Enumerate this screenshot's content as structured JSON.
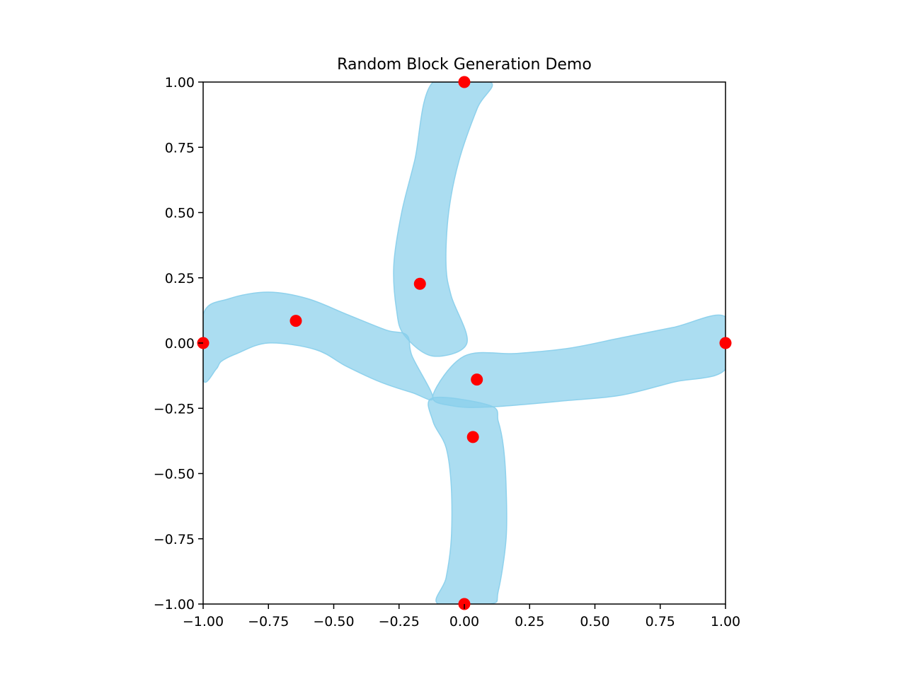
{
  "chart_data": {
    "type": "scatter",
    "title": "Random Block Generation Demo",
    "xlabel": "",
    "ylabel": "",
    "xlim": [
      -1.0,
      1.0
    ],
    "ylim": [
      -1.0,
      1.0
    ],
    "grid": false,
    "xticks": [
      -1.0,
      -0.75,
      -0.5,
      -0.25,
      0.0,
      0.25,
      0.5,
      0.75,
      1.0
    ],
    "yticks": [
      -1.0,
      -0.75,
      -0.5,
      -0.25,
      0.0,
      0.25,
      0.5,
      0.75,
      1.0
    ],
    "xtick_labels": [
      "−1.00",
      "−0.75",
      "−0.50",
      "−0.25",
      "0.00",
      "0.25",
      "0.50",
      "0.75",
      "1.00"
    ],
    "ytick_labels": [
      "−1.00",
      "−0.75",
      "−0.50",
      "−0.25",
      "0.00",
      "0.25",
      "0.50",
      "0.75",
      "1.00"
    ],
    "points": [
      {
        "x": -1.0,
        "y": 0.0
      },
      {
        "x": -0.645,
        "y": 0.085
      },
      {
        "x": -0.17,
        "y": 0.227
      },
      {
        "x": 0.0,
        "y": 1.0
      },
      {
        "x": 0.048,
        "y": -0.14
      },
      {
        "x": 0.033,
        "y": -0.36
      },
      {
        "x": 0.0,
        "y": -1.0
      },
      {
        "x": 1.0,
        "y": 0.0
      }
    ],
    "point_color": "#ff0000",
    "blocks": [
      {
        "name": "left-arm",
        "outline": [
          [
            -1.0,
            0.11
          ],
          [
            -0.9,
            0.17
          ],
          [
            -0.75,
            0.195
          ],
          [
            -0.6,
            0.17
          ],
          [
            -0.45,
            0.11
          ],
          [
            -0.3,
            0.05
          ],
          [
            -0.22,
            0.03
          ],
          [
            -0.2,
            -0.05
          ],
          [
            -0.12,
            -0.21
          ],
          [
            -0.2,
            -0.19
          ],
          [
            -0.32,
            -0.15
          ],
          [
            -0.45,
            -0.09
          ],
          [
            -0.57,
            -0.025
          ],
          [
            -0.75,
            0.0
          ],
          [
            -0.87,
            -0.04
          ],
          [
            -0.93,
            -0.07
          ],
          [
            -0.95,
            -0.1
          ],
          [
            -1.0,
            -0.14
          ]
        ]
      },
      {
        "name": "top-arm",
        "outline": [
          [
            -0.12,
            1.0
          ],
          [
            0.1,
            1.0
          ],
          [
            0.05,
            0.9
          ],
          [
            -0.02,
            0.7
          ],
          [
            -0.06,
            0.5
          ],
          [
            -0.07,
            0.3
          ],
          [
            -0.05,
            0.18
          ],
          [
            0.01,
            0.0
          ],
          [
            -0.12,
            -0.05
          ],
          [
            -0.23,
            0.03
          ],
          [
            -0.26,
            0.13
          ],
          [
            -0.27,
            0.3
          ],
          [
            -0.24,
            0.5
          ],
          [
            -0.19,
            0.7
          ]
        ]
      },
      {
        "name": "right-arm",
        "outline": [
          [
            0.0,
            -0.05
          ],
          [
            0.2,
            -0.04
          ],
          [
            0.4,
            -0.02
          ],
          [
            0.6,
            0.02
          ],
          [
            0.8,
            0.06
          ],
          [
            1.0,
            0.1
          ],
          [
            1.0,
            -0.1
          ],
          [
            0.8,
            -0.15
          ],
          [
            0.6,
            -0.2
          ],
          [
            0.4,
            -0.22
          ],
          [
            0.1,
            -0.245
          ],
          [
            -0.05,
            -0.24
          ],
          [
            -0.12,
            -0.2
          ]
        ]
      },
      {
        "name": "bottom-arm",
        "outline": [
          [
            -0.12,
            -0.21
          ],
          [
            0.1,
            -0.24
          ],
          [
            0.13,
            -0.3
          ],
          [
            0.15,
            -0.4
          ],
          [
            0.16,
            -0.55
          ],
          [
            0.16,
            -0.75
          ],
          [
            0.13,
            -0.95
          ],
          [
            0.1,
            -1.0
          ],
          [
            -0.1,
            -1.0
          ],
          [
            -0.07,
            -0.9
          ],
          [
            -0.05,
            -0.75
          ],
          [
            -0.05,
            -0.55
          ],
          [
            -0.07,
            -0.4
          ],
          [
            -0.12,
            -0.3
          ]
        ]
      }
    ],
    "block_color": "#87ceeb",
    "block_opacity": 0.7
  }
}
